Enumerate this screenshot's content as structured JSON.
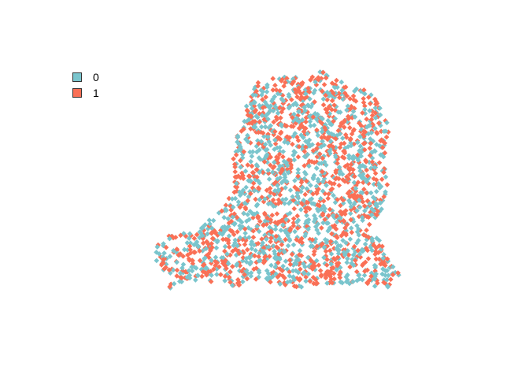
{
  "chart_data": {
    "type": "scatter",
    "title": "",
    "xlabel": "",
    "ylabel": "",
    "legend_position": "top-left",
    "grid": false,
    "marker_shape": "diamond",
    "series": [
      {
        "name": "0",
        "color": "#7AC5CD"
      },
      {
        "name": "1",
        "color": "#FA7056"
      }
    ]
  },
  "legend": {
    "items": [
      {
        "label": "0",
        "color": "#7AC5CD"
      },
      {
        "label": "1",
        "color": "#FA7056"
      }
    ]
  }
}
